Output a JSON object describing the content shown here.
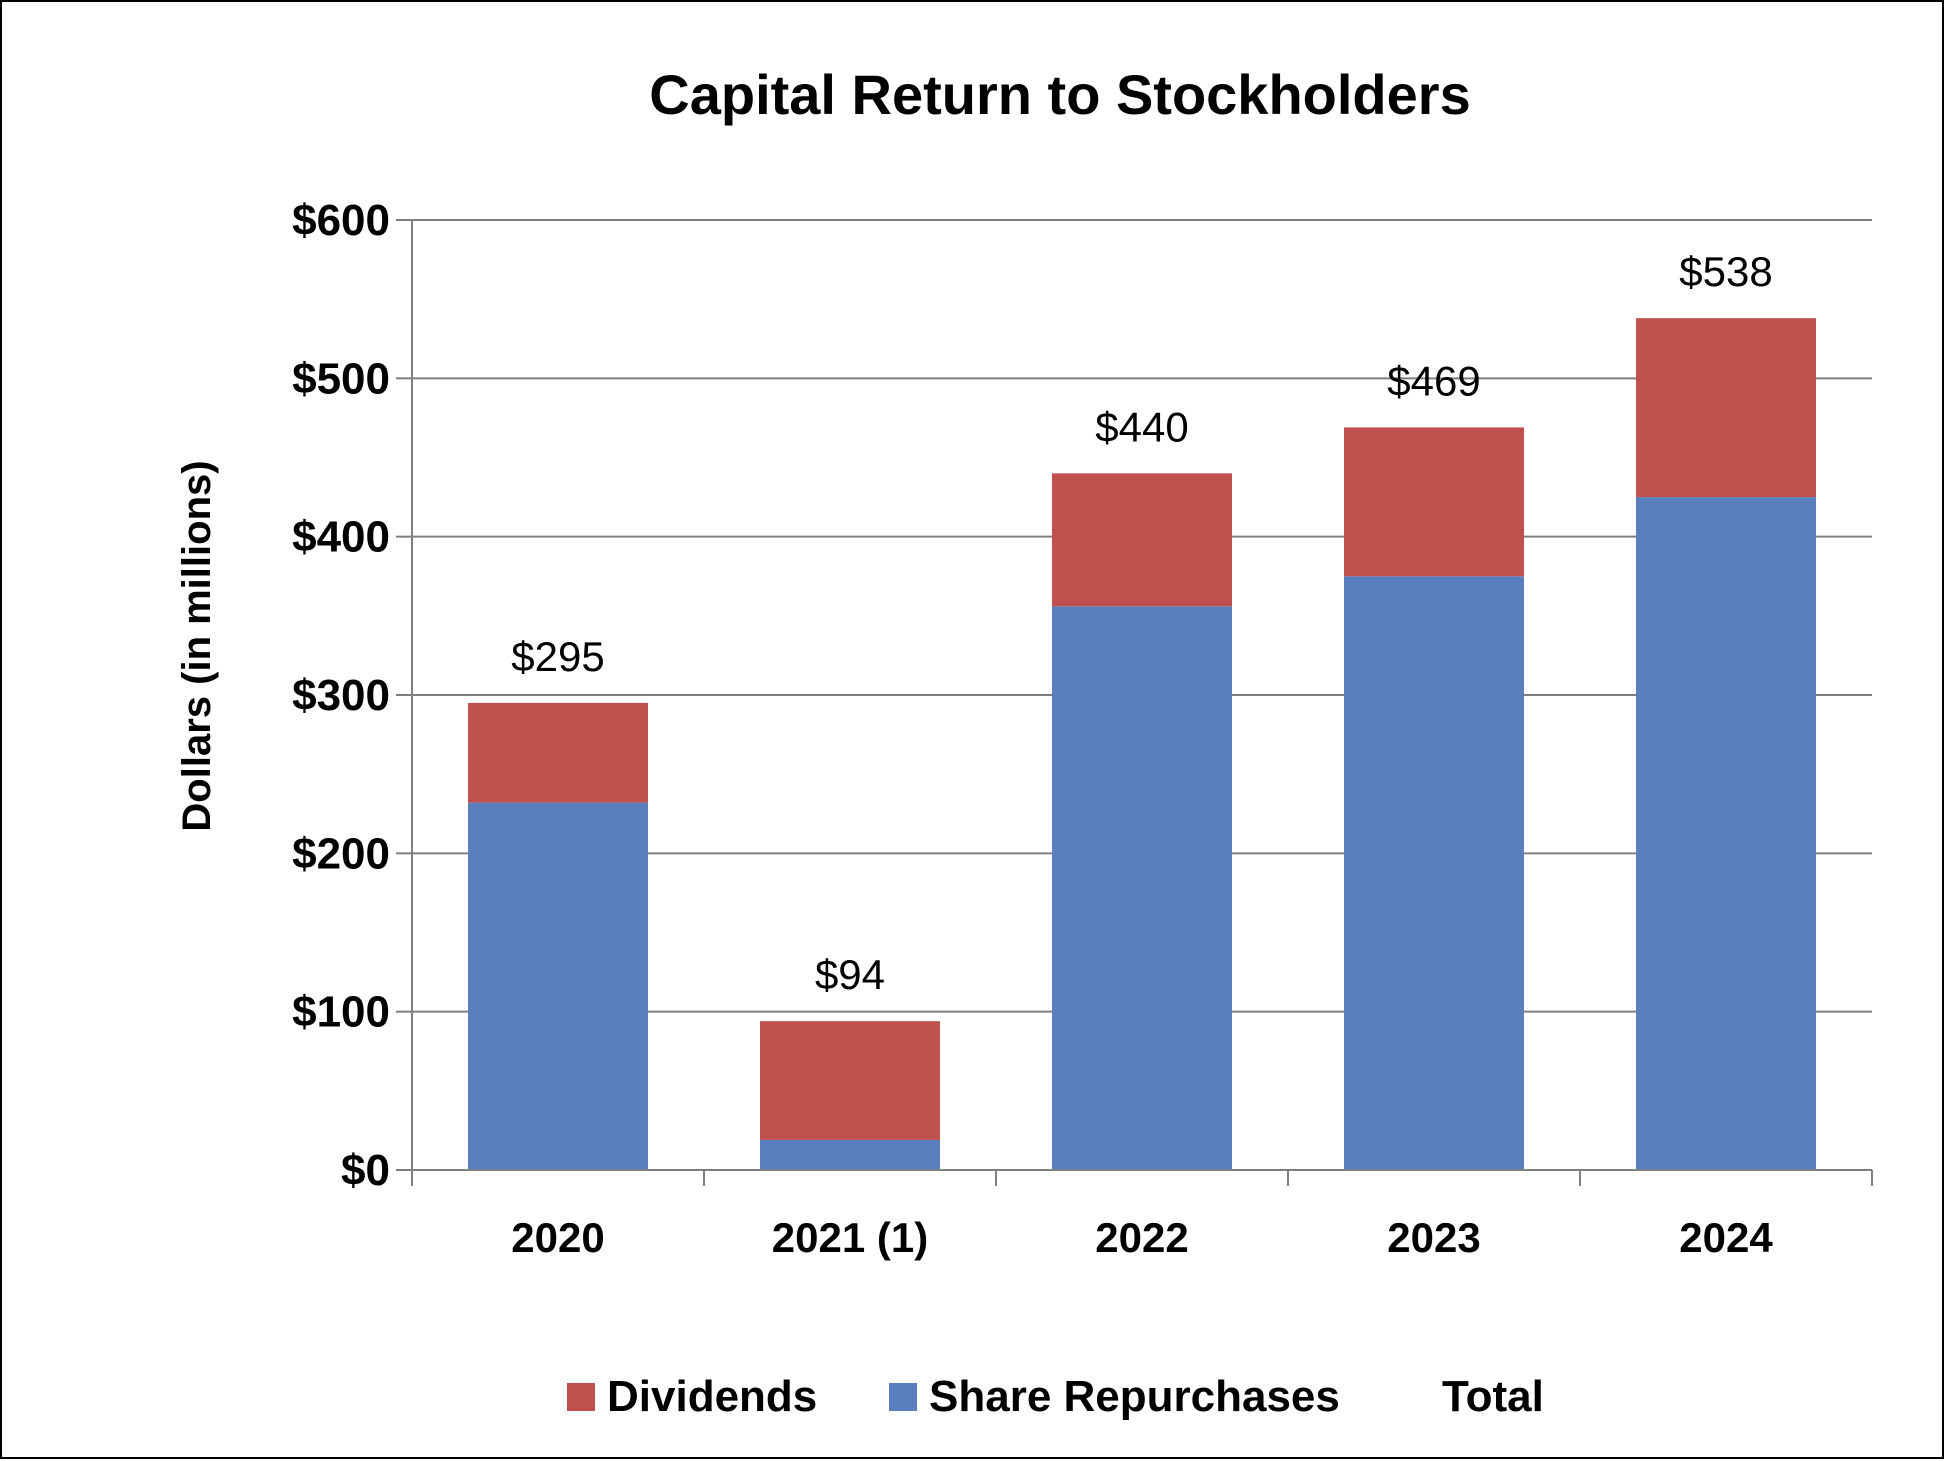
{
  "chart_data": {
    "type": "bar",
    "stacked": true,
    "title": "Capital Return to Stockholders",
    "ylabel": "Dollars (in millions)",
    "xlabel": "",
    "categories": [
      "2020",
      "2021 (1)",
      "2022",
      "2023",
      "2024"
    ],
    "ylim": [
      0,
      600
    ],
    "yticks": [
      0,
      100,
      200,
      300,
      400,
      500,
      600
    ],
    "ytick_labels": [
      "$0",
      "$100",
      "$200",
      "$300",
      "$400",
      "$500",
      "$600"
    ],
    "grid": true,
    "series": [
      {
        "name": "Share Repurchases",
        "color": "#5B7EBF",
        "values": [
          232,
          19,
          356,
          375,
          425
        ]
      },
      {
        "name": "Dividends",
        "color": "#C0504D",
        "values": [
          63,
          75,
          84,
          94,
          113
        ]
      }
    ],
    "totals": {
      "name": "Total",
      "labels": [
        "$295",
        "$94",
        "$440",
        "$469",
        "$538"
      ]
    },
    "legend": {
      "placement": "bottom",
      "entries": [
        {
          "label": "Dividends",
          "color": "#C0504D"
        },
        {
          "label": "Share Repurchases",
          "color": "#5B7EBF"
        },
        {
          "label": "Total",
          "color": ""
        }
      ]
    }
  }
}
